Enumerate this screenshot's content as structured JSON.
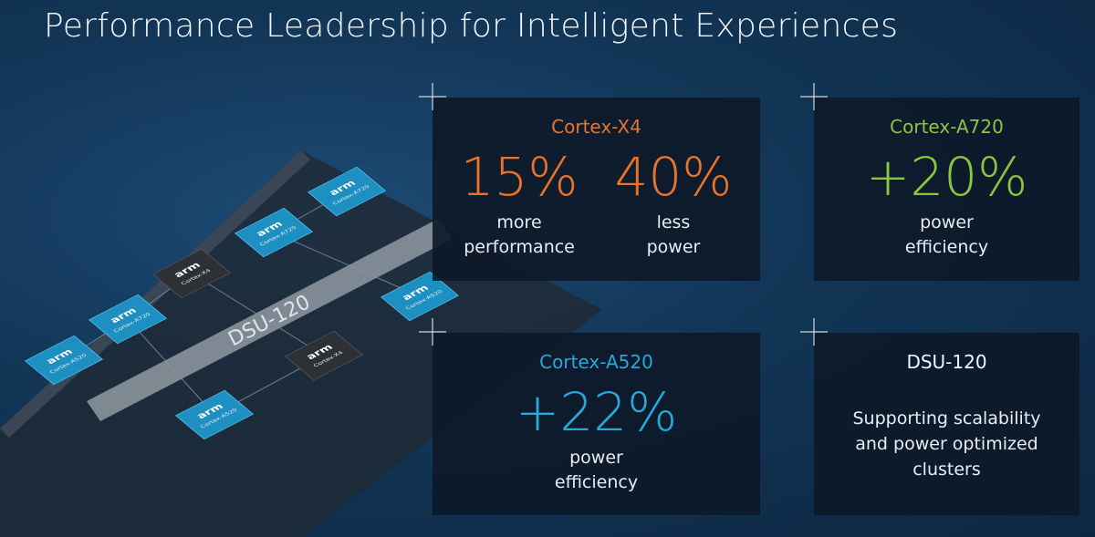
{
  "title": "Performance Leadership for Intelligent Experiences",
  "cards": [
    {
      "title": "Cortex-X4",
      "stats": [
        {
          "value": "15%",
          "caption": [
            "more",
            "performance"
          ]
        },
        {
          "value": "40%",
          "caption": [
            "less",
            "power"
          ]
        }
      ]
    },
    {
      "title": "Cortex-A720",
      "stats": [
        {
          "value": "+20%",
          "caption": [
            "power",
            "efficiency"
          ]
        }
      ]
    },
    {
      "title": "Cortex-A520",
      "stats": [
        {
          "value": "+22%",
          "caption": [
            "power",
            "efficiency"
          ]
        }
      ]
    },
    {
      "title": "DSU-120",
      "text": [
        "Supporting scalability",
        "and power optimized",
        "clusters"
      ]
    }
  ],
  "illustration": {
    "bus": "DSU-120",
    "chips": [
      {
        "logo": "arm",
        "label": "Cortex-A520"
      },
      {
        "logo": "arm",
        "label": "Cortex-A720"
      },
      {
        "logo": "arm",
        "label": "Cortex-X4"
      },
      {
        "logo": "arm",
        "label": "Cortex-A720"
      },
      {
        "logo": "arm",
        "label": "Cortex-A720"
      },
      {
        "logo": "arm",
        "label": "Cortex-A520"
      },
      {
        "logo": "arm",
        "label": "Cortex-X4"
      },
      {
        "logo": "arm",
        "label": "Cortex-A520"
      }
    ]
  }
}
